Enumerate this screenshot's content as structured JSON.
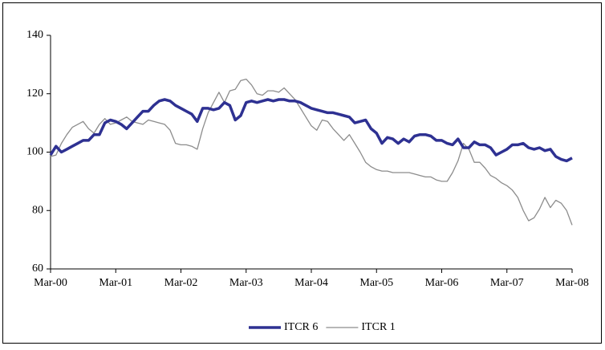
{
  "chart_data": {
    "type": "line",
    "categories": [
      "Mar-00",
      null,
      null,
      null,
      null,
      null,
      null,
      null,
      null,
      null,
      null,
      null,
      "Mar-01",
      null,
      null,
      null,
      null,
      null,
      null,
      null,
      null,
      null,
      null,
      null,
      "Mar-02",
      null,
      null,
      null,
      null,
      null,
      null,
      null,
      null,
      null,
      null,
      null,
      "Mar-03",
      null,
      null,
      null,
      null,
      null,
      null,
      null,
      null,
      null,
      null,
      null,
      "Mar-04",
      null,
      null,
      null,
      null,
      null,
      null,
      null,
      null,
      null,
      null,
      null,
      "Mar-05",
      null,
      null,
      null,
      null,
      null,
      null,
      null,
      null,
      null,
      null,
      null,
      "Mar-06",
      null,
      null,
      null,
      null,
      null,
      null,
      null,
      null,
      null,
      null,
      null,
      "Mar-07",
      null,
      null,
      null,
      null,
      null,
      null,
      null,
      null,
      null,
      null,
      null,
      "Mar-08"
    ],
    "series": [
      {
        "name": "ITCR 6",
        "color": "#2e3192",
        "width": 3.5,
        "values": [
          99,
          102,
          100,
          101,
          102,
          103,
          104,
          104,
          106,
          106,
          110,
          111,
          110.5,
          109.5,
          108,
          110,
          112,
          114,
          114,
          116,
          117.5,
          118,
          117.5,
          116,
          115,
          114,
          113,
          110.5,
          115,
          115,
          114.5,
          115,
          117,
          116,
          111,
          112.5,
          117,
          117.5,
          117,
          117.5,
          118,
          117.5,
          118,
          118,
          117.5,
          117.5,
          117,
          116,
          115,
          114.5,
          114,
          113.5,
          113.5,
          113,
          112.5,
          112,
          110,
          110.5,
          111,
          108,
          106.5,
          103,
          105,
          104.5,
          103,
          104.5,
          103.5,
          105.5,
          106,
          106,
          105.5,
          104,
          104,
          103,
          102.5,
          104.5,
          101.5,
          101.5,
          103.5,
          102.5,
          102.5,
          101.5,
          99,
          100,
          101,
          102.5,
          102.5,
          103,
          101.5,
          101,
          101.5,
          100.5,
          101,
          98.5,
          97.5,
          97,
          98
        ]
      },
      {
        "name": "ITCR 1",
        "color": "#8c8c8c",
        "width": 1.3,
        "values": [
          98.5,
          99,
          103,
          106,
          108.5,
          109.5,
          110.5,
          108,
          106.5,
          109.5,
          111.5,
          109.5,
          110,
          111,
          112,
          110.5,
          110,
          109.5,
          111,
          110.5,
          110,
          109.5,
          107.5,
          103,
          102.5,
          102.5,
          102,
          101,
          108,
          113.5,
          117,
          120.5,
          117,
          121,
          121.5,
          124.5,
          125,
          123,
          120,
          119.5,
          121,
          121,
          120.5,
          122,
          120,
          118,
          115,
          112,
          109,
          107.5,
          111,
          110.5,
          108,
          106,
          104,
          106,
          103,
          100,
          96.5,
          95,
          94,
          93.5,
          93.5,
          93,
          93,
          93,
          93,
          92.5,
          92,
          91.5,
          91.5,
          90.5,
          90,
          90,
          93,
          97,
          103,
          101,
          96.5,
          96.5,
          94.5,
          92,
          91,
          89.5,
          88.5,
          87,
          84.5,
          80,
          76.5,
          77.5,
          80.5,
          84.5,
          81,
          83.5,
          82.5,
          80,
          75
        ]
      }
    ],
    "ylim": [
      60,
      140
    ],
    "yticks": [
      60,
      80,
      100,
      120,
      140
    ],
    "grid": false
  }
}
